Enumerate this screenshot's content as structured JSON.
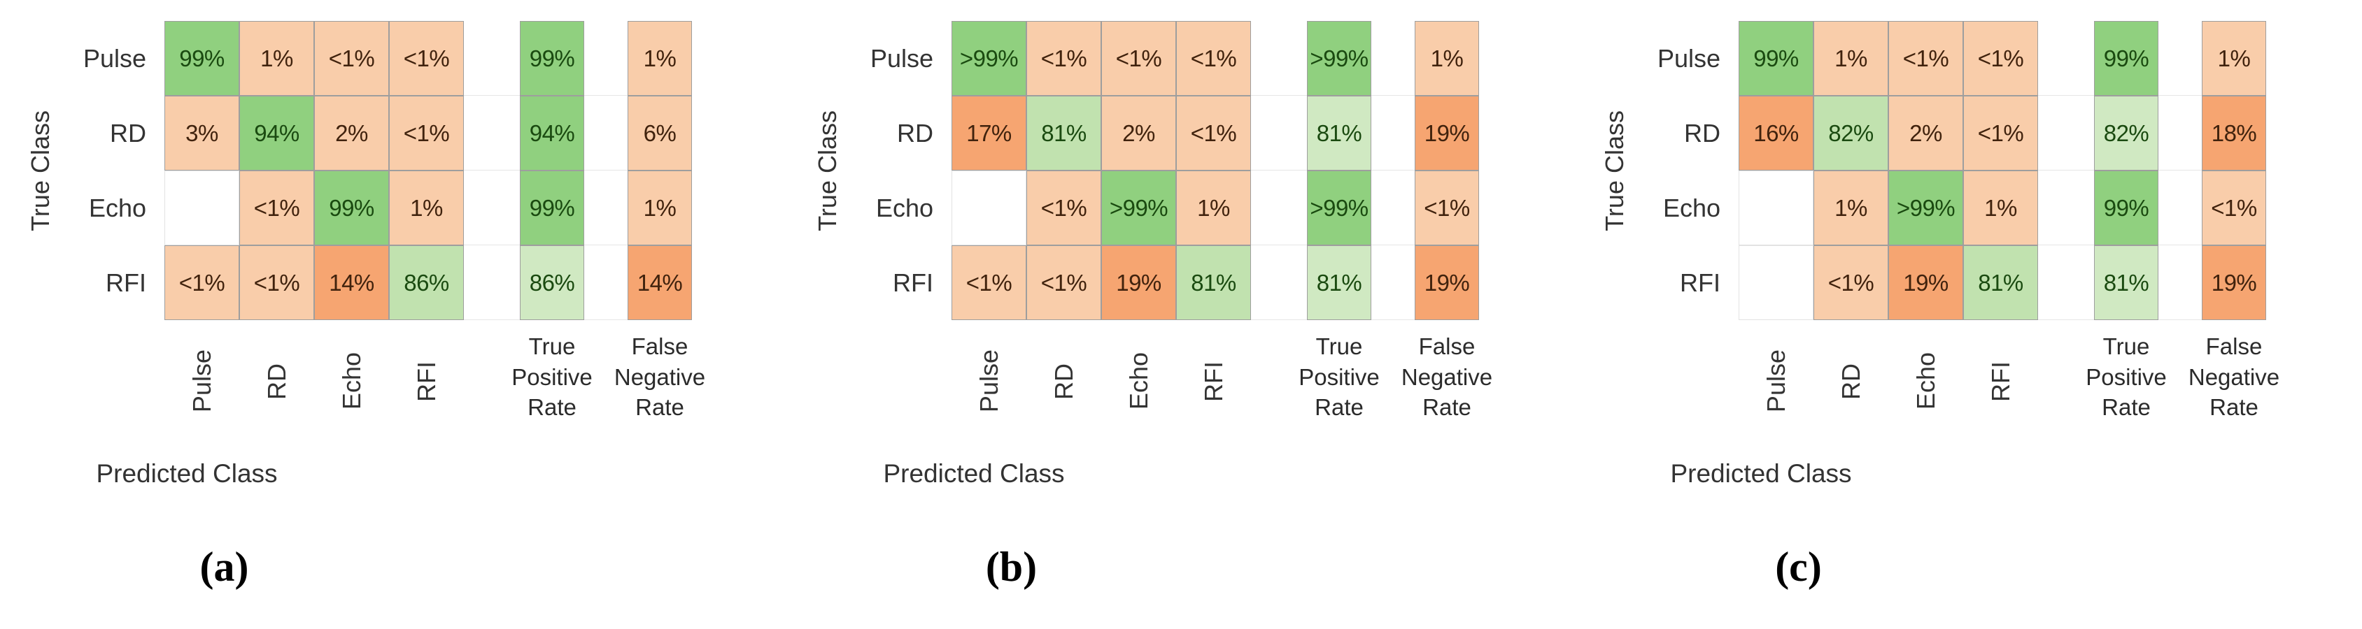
{
  "figure": {
    "description": "Three confusion matrix charts side by side",
    "palette": {
      "green_strong": {
        "bg": "#90d07f",
        "fg": "#1a4a10"
      },
      "green_mid": {
        "bg": "#c1e2af",
        "fg": "#1a4a10"
      },
      "green_light": {
        "bg": "#d0e9c2",
        "fg": "#1a4a10"
      },
      "peach": {
        "bg": "#f9cdaa",
        "fg": "#40220d"
      },
      "orange": {
        "bg": "#f6a571",
        "fg": "#40220d"
      },
      "blank": {
        "bg": "#ffffff",
        "fg": "#40220d"
      }
    },
    "panels": [
      {
        "caption": "(a)",
        "y_axis_label": "True Class",
        "x_axis_label": "Predicted Class",
        "tpr_header": "True\nPositive\nRate",
        "fnr_header": "False\nNegative\nRate",
        "row_labels": [
          "Pulse",
          "RD",
          "Echo",
          "RFI"
        ],
        "col_labels": [
          "Pulse",
          "RD",
          "Echo",
          "RFI"
        ],
        "cells": [
          [
            {
              "v": "99%",
              "t": "green_strong"
            },
            {
              "v": "1%",
              "t": "peach"
            },
            {
              "v": "<1%",
              "t": "peach"
            },
            {
              "v": "<1%",
              "t": "peach"
            }
          ],
          [
            {
              "v": "3%",
              "t": "peach"
            },
            {
              "v": "94%",
              "t": "green_strong"
            },
            {
              "v": "2%",
              "t": "peach"
            },
            {
              "v": "<1%",
              "t": "peach"
            }
          ],
          [
            {
              "v": "",
              "t": "blank"
            },
            {
              "v": "<1%",
              "t": "peach"
            },
            {
              "v": "99%",
              "t": "green_strong"
            },
            {
              "v": "1%",
              "t": "peach"
            }
          ],
          [
            {
              "v": "<1%",
              "t": "peach"
            },
            {
              "v": "<1%",
              "t": "peach"
            },
            {
              "v": "14%",
              "t": "orange"
            },
            {
              "v": "86%",
              "t": "green_mid"
            }
          ]
        ],
        "tpr": [
          {
            "v": "99%",
            "t": "green_strong"
          },
          {
            "v": "94%",
            "t": "green_strong"
          },
          {
            "v": "99%",
            "t": "green_strong"
          },
          {
            "v": "86%",
            "t": "green_light"
          }
        ],
        "fnr": [
          {
            "v": "1%",
            "t": "peach"
          },
          {
            "v": "6%",
            "t": "peach"
          },
          {
            "v": "1%",
            "t": "peach"
          },
          {
            "v": "14%",
            "t": "orange"
          }
        ]
      },
      {
        "caption": "(b)",
        "y_axis_label": "True Class",
        "x_axis_label": "Predicted Class",
        "tpr_header": "True\nPositive\nRate",
        "fnr_header": "False\nNegative\nRate",
        "row_labels": [
          "Pulse",
          "RD",
          "Echo",
          "RFI"
        ],
        "col_labels": [
          "Pulse",
          "RD",
          "Echo",
          "RFI"
        ],
        "cells": [
          [
            {
              "v": ">99%",
              "t": "green_strong"
            },
            {
              "v": "<1%",
              "t": "peach"
            },
            {
              "v": "<1%",
              "t": "peach"
            },
            {
              "v": "<1%",
              "t": "peach"
            }
          ],
          [
            {
              "v": "17%",
              "t": "orange"
            },
            {
              "v": "81%",
              "t": "green_mid"
            },
            {
              "v": "2%",
              "t": "peach"
            },
            {
              "v": "<1%",
              "t": "peach"
            }
          ],
          [
            {
              "v": "",
              "t": "blank"
            },
            {
              "v": "<1%",
              "t": "peach"
            },
            {
              "v": ">99%",
              "t": "green_strong"
            },
            {
              "v": "1%",
              "t": "peach"
            }
          ],
          [
            {
              "v": "<1%",
              "t": "peach"
            },
            {
              "v": "<1%",
              "t": "peach"
            },
            {
              "v": "19%",
              "t": "orange"
            },
            {
              "v": "81%",
              "t": "green_mid"
            }
          ]
        ],
        "tpr": [
          {
            "v": ">99%",
            "t": "green_strong"
          },
          {
            "v": "81%",
            "t": "green_light"
          },
          {
            "v": ">99%",
            "t": "green_strong"
          },
          {
            "v": "81%",
            "t": "green_light"
          }
        ],
        "fnr": [
          {
            "v": "1%",
            "t": "peach"
          },
          {
            "v": "19%",
            "t": "orange"
          },
          {
            "v": "<1%",
            "t": "peach"
          },
          {
            "v": "19%",
            "t": "orange"
          }
        ]
      },
      {
        "caption": "(c)",
        "y_axis_label": "True Class",
        "x_axis_label": "Predicted Class",
        "tpr_header": "True\nPositive\nRate",
        "fnr_header": "False\nNegative\nRate",
        "row_labels": [
          "Pulse",
          "RD",
          "Echo",
          "RFI"
        ],
        "col_labels": [
          "Pulse",
          "RD",
          "Echo",
          "RFI"
        ],
        "cells": [
          [
            {
              "v": "99%",
              "t": "green_strong"
            },
            {
              "v": "1%",
              "t": "peach"
            },
            {
              "v": "<1%",
              "t": "peach"
            },
            {
              "v": "<1%",
              "t": "peach"
            }
          ],
          [
            {
              "v": "16%",
              "t": "orange"
            },
            {
              "v": "82%",
              "t": "green_mid"
            },
            {
              "v": "2%",
              "t": "peach"
            },
            {
              "v": "<1%",
              "t": "peach"
            }
          ],
          [
            {
              "v": "",
              "t": "blank"
            },
            {
              "v": "1%",
              "t": "peach"
            },
            {
              "v": ">99%",
              "t": "green_strong"
            },
            {
              "v": "1%",
              "t": "peach"
            }
          ],
          [
            {
              "v": "",
              "t": "blank"
            },
            {
              "v": "<1%",
              "t": "peach"
            },
            {
              "v": "19%",
              "t": "orange"
            },
            {
              "v": "81%",
              "t": "green_mid"
            }
          ]
        ],
        "tpr": [
          {
            "v": "99%",
            "t": "green_strong"
          },
          {
            "v": "82%",
            "t": "green_light"
          },
          {
            "v": "99%",
            "t": "green_strong"
          },
          {
            "v": "81%",
            "t": "green_light"
          }
        ],
        "fnr": [
          {
            "v": "1%",
            "t": "peach"
          },
          {
            "v": "18%",
            "t": "orange"
          },
          {
            "v": "<1%",
            "t": "peach"
          },
          {
            "v": "19%",
            "t": "orange"
          }
        ]
      }
    ]
  },
  "chart_data": [
    {
      "type": "heatmap",
      "title": "(a)",
      "xlabel": "Predicted Class",
      "ylabel": "True Class",
      "x_categories": [
        "Pulse",
        "RD",
        "Echo",
        "RFI"
      ],
      "y_categories": [
        "Pulse",
        "RD",
        "Echo",
        "RFI"
      ],
      "matrix": [
        [
          "99%",
          "1%",
          "<1%",
          "<1%"
        ],
        [
          "3%",
          "94%",
          "2%",
          "<1%"
        ],
        [
          "",
          "<1%",
          "99%",
          "1%"
        ],
        [
          "<1%",
          "<1%",
          "14%",
          "86%"
        ]
      ],
      "true_positive_rate": [
        "99%",
        "94%",
        "99%",
        "86%"
      ],
      "false_negative_rate": [
        "1%",
        "6%",
        "1%",
        "14%"
      ],
      "legend_position": "none",
      "grid": true
    },
    {
      "type": "heatmap",
      "title": "(b)",
      "xlabel": "Predicted Class",
      "ylabel": "True Class",
      "x_categories": [
        "Pulse",
        "RD",
        "Echo",
        "RFI"
      ],
      "y_categories": [
        "Pulse",
        "RD",
        "Echo",
        "RFI"
      ],
      "matrix": [
        [
          ">99%",
          "<1%",
          "<1%",
          "<1%"
        ],
        [
          "17%",
          "81%",
          "2%",
          "<1%"
        ],
        [
          "",
          "<1%",
          ">99%",
          "1%"
        ],
        [
          "<1%",
          "<1%",
          "19%",
          "81%"
        ]
      ],
      "true_positive_rate": [
        ">99%",
        "81%",
        ">99%",
        "81%"
      ],
      "false_negative_rate": [
        "1%",
        "19%",
        "<1%",
        "19%"
      ],
      "legend_position": "none",
      "grid": true
    },
    {
      "type": "heatmap",
      "title": "(c)",
      "xlabel": "Predicted Class",
      "ylabel": "True Class",
      "x_categories": [
        "Pulse",
        "RD",
        "Echo",
        "RFI"
      ],
      "y_categories": [
        "Pulse",
        "RD",
        "Echo",
        "RFI"
      ],
      "matrix": [
        [
          "99%",
          "1%",
          "<1%",
          "<1%"
        ],
        [
          "16%",
          "82%",
          "2%",
          "<1%"
        ],
        [
          "",
          "1%",
          ">99%",
          "1%"
        ],
        [
          "",
          "<1%",
          "19%",
          "81%"
        ]
      ],
      "true_positive_rate": [
        "99%",
        "82%",
        "99%",
        "81%"
      ],
      "false_negative_rate": [
        "1%",
        "18%",
        "<1%",
        "19%"
      ],
      "legend_position": "none",
      "grid": true
    }
  ]
}
